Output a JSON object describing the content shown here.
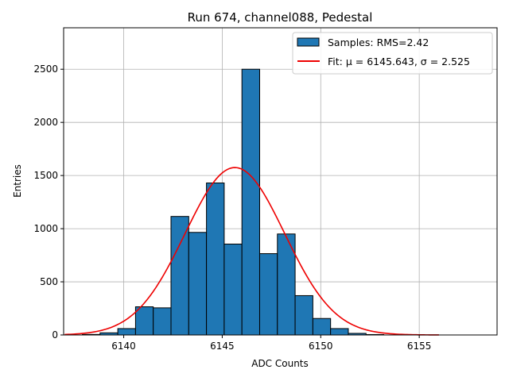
{
  "chart_data": {
    "type": "bar",
    "title": "Run 674, channel088, Pedestal",
    "xlabel": "ADC Counts",
    "ylabel": "Entries",
    "xlim": [
      6136.95,
      6158.95
    ],
    "ylim": [
      0,
      2890
    ],
    "x_ticks": [
      6140,
      6145,
      6150,
      6155
    ],
    "y_ticks": [
      0,
      500,
      1000,
      1500,
      2000,
      2500
    ],
    "grid": true,
    "bin_width": 0.9,
    "bins": [
      {
        "left": 6137.9,
        "value": 5
      },
      {
        "left": 6138.8,
        "value": 20
      },
      {
        "left": 6139.7,
        "value": 60
      },
      {
        "left": 6140.6,
        "value": 265
      },
      {
        "left": 6141.5,
        "value": 255
      },
      {
        "left": 6142.4,
        "value": 1115
      },
      {
        "left": 6143.3,
        "value": 965
      },
      {
        "left": 6144.2,
        "value": 1430
      },
      {
        "left": 6145.1,
        "value": 855
      },
      {
        "left": 6146.0,
        "value": 2500
      },
      {
        "left": 6146.9,
        "value": 765
      },
      {
        "left": 6147.8,
        "value": 950
      },
      {
        "left": 6148.7,
        "value": 370
      },
      {
        "left": 6149.6,
        "value": 155
      },
      {
        "left": 6150.5,
        "value": 60
      },
      {
        "left": 6151.4,
        "value": 15
      },
      {
        "left": 6152.3,
        "value": 4
      }
    ],
    "fit": {
      "mu": 6145.643,
      "sigma": 2.525,
      "amplitude": 1575,
      "x_range": [
        6137.0,
        6156.0
      ]
    },
    "colors": {
      "bar": "#1f77b4",
      "bar_edge": "#000000",
      "fit_line": "#ee0000",
      "grid": "#b0b0b0"
    },
    "legend": {
      "position": "upper-right",
      "entries": [
        {
          "kind": "bar",
          "label": "Samples: RMS=2.42"
        },
        {
          "kind": "line",
          "label": "Fit: μ = 6145.643, σ = 2.525"
        }
      ]
    }
  }
}
